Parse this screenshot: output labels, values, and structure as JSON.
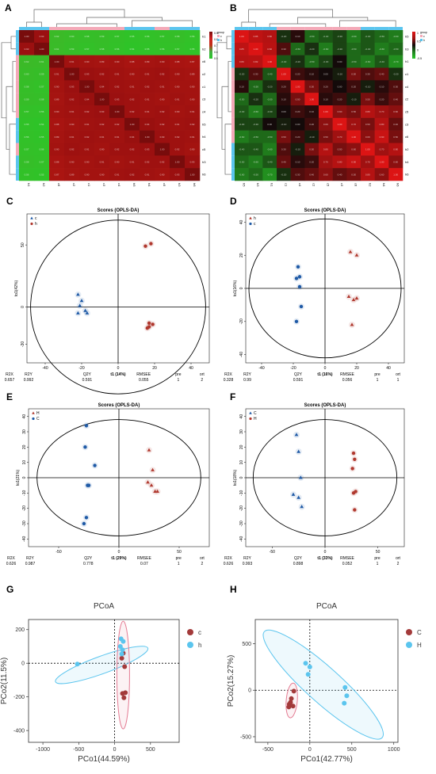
{
  "panel_letters": [
    "A",
    "B",
    "C",
    "D",
    "E",
    "F",
    "G",
    "H"
  ],
  "heatmaps": {
    "A": {
      "legend_title": "group",
      "legend_groups": [
        "c",
        "h"
      ],
      "scale_ticks": [
        "0.9",
        "0.8",
        "0.7",
        "0.6",
        "0.5"
      ],
      "row_labels": [
        "h1",
        "h2",
        "c6",
        "c2",
        "c1",
        "c3",
        "c4",
        "h5",
        "h4",
        "c5",
        "h3",
        "h6"
      ],
      "col_labels": [
        "h1",
        "h2",
        "c6",
        "c2",
        "c1",
        "c3",
        "c4",
        "h5",
        "h4",
        "c5",
        "h3",
        "h6"
      ],
      "values": [
        [
          1.0,
          0.93,
          0.62,
          0.6,
          0.58,
          0.59,
          0.57,
          0.55,
          0.56,
          0.57,
          0.58,
          0.56
        ],
        [
          0.93,
          1.0,
          0.61,
          0.59,
          0.57,
          0.58,
          0.56,
          0.54,
          0.55,
          0.56,
          0.57,
          0.55
        ],
        [
          0.62,
          0.61,
          1.0,
          0.91,
          0.9,
          0.89,
          0.9,
          0.88,
          0.89,
          0.9,
          0.88,
          0.87
        ],
        [
          0.6,
          0.59,
          0.91,
          1.0,
          0.93,
          0.92,
          0.91,
          0.9,
          0.91,
          0.92,
          0.9,
          0.89
        ],
        [
          0.58,
          0.57,
          0.9,
          0.93,
          1.0,
          0.94,
          0.92,
          0.91,
          0.92,
          0.91,
          0.9,
          0.9
        ],
        [
          0.59,
          0.58,
          0.89,
          0.92,
          0.94,
          1.0,
          0.93,
          0.92,
          0.91,
          0.9,
          0.91,
          0.9
        ],
        [
          0.57,
          0.56,
          0.9,
          0.91,
          0.92,
          0.93,
          1.0,
          0.92,
          0.91,
          0.92,
          0.9,
          0.91
        ],
        [
          0.55,
          0.54,
          0.88,
          0.9,
          0.91,
          0.92,
          0.92,
          1.0,
          0.94,
          0.92,
          0.91,
          0.92
        ],
        [
          0.56,
          0.55,
          0.89,
          0.91,
          0.92,
          0.91,
          0.91,
          0.94,
          1.0,
          0.93,
          0.92,
          0.91
        ],
        [
          0.57,
          0.56,
          0.9,
          0.92,
          0.91,
          0.9,
          0.92,
          0.92,
          0.93,
          1.0,
          0.92,
          0.9
        ],
        [
          0.58,
          0.57,
          0.88,
          0.9,
          0.9,
          0.91,
          0.9,
          0.91,
          0.92,
          0.92,
          1.0,
          0.93
        ],
        [
          0.56,
          0.55,
          0.87,
          0.89,
          0.9,
          0.9,
          0.91,
          0.92,
          0.91,
          0.9,
          0.93,
          1.0
        ]
      ]
    },
    "B": {
      "legend_title": "group",
      "legend_groups": [
        "c",
        "h"
      ],
      "scale_ticks": [
        "1",
        "0.5",
        "0",
        "-0.5"
      ],
      "row_labels": [
        "h5",
        "h3",
        "h1",
        "c1",
        "c4",
        "c2",
        "c5",
        "c3",
        "c6",
        "h2",
        "h4",
        "h6"
      ],
      "col_labels": [
        "h5",
        "h3",
        "h1",
        "c1",
        "c4",
        "c2",
        "c5",
        "c3",
        "c6",
        "h2",
        "h4",
        "h6"
      ],
      "values": [
        [
          1.0,
          0.85,
          0.8,
          -0.2,
          0.1,
          -0.5,
          -0.4,
          -0.3,
          -0.6,
          -0.4,
          -0.5,
          -0.6
        ],
        [
          0.85,
          1.0,
          0.82,
          0.3,
          -0.5,
          -0.2,
          -0.6,
          -0.3,
          -0.5,
          -0.4,
          -0.6,
          -0.5
        ],
        [
          0.8,
          0.82,
          1.0,
          -0.4,
          -0.2,
          -0.5,
          -0.3,
          0.0,
          -0.5,
          -0.6,
          -0.4,
          -0.7
        ],
        [
          -0.2,
          0.3,
          -0.4,
          1.0,
          0.2,
          0.1,
          0.0,
          -0.1,
          0.5,
          0.3,
          0.4,
          -0.2
        ],
        [
          0.1,
          -0.5,
          -0.2,
          0.2,
          1.0,
          0.5,
          0.2,
          0.0,
          0.2,
          -0.1,
          0.1,
          0.3
        ],
        [
          -0.5,
          -0.2,
          -0.5,
          0.1,
          0.5,
          1.0,
          0.1,
          0.2,
          -0.1,
          0.5,
          0.2,
          0.4
        ],
        [
          -0.4,
          -0.6,
          -0.3,
          0.0,
          0.2,
          0.1,
          1.0,
          0.6,
          0.5,
          0.8,
          0.7,
          0.6
        ],
        [
          -0.3,
          -0.3,
          0.0,
          -0.1,
          0.0,
          0.2,
          0.6,
          1.0,
          0.7,
          0.5,
          0.8,
          0.4
        ],
        [
          -0.6,
          -0.5,
          -0.5,
          0.5,
          0.2,
          -0.1,
          0.5,
          0.7,
          1.0,
          0.6,
          0.9,
          0.5
        ],
        [
          -0.4,
          -0.4,
          -0.6,
          0.3,
          -0.1,
          0.5,
          0.8,
          0.5,
          0.6,
          1.0,
          0.7,
          0.8
        ],
        [
          -0.5,
          -0.6,
          -0.4,
          0.4,
          0.1,
          0.2,
          0.7,
          0.8,
          0.9,
          0.7,
          1.0,
          0.6
        ],
        [
          -0.6,
          -0.5,
          -0.7,
          -0.2,
          0.3,
          0.4,
          0.6,
          0.4,
          0.5,
          0.8,
          0.6,
          1.0
        ]
      ]
    }
  },
  "opls": {
    "C": {
      "title": "Scores (OPLS-DA)",
      "xlabel": "t1 (14%)",
      "ylabel": "to1(42%)",
      "xlim": [
        -50,
        50
      ],
      "ylim": [
        -45,
        75
      ],
      "xticks": [
        -40,
        -20,
        0,
        20,
        40
      ],
      "yticks": [
        -30,
        0,
        50
      ],
      "ellipse_rx": 48,
      "ellipse_ry": 70,
      "legend": [
        {
          "label": "c",
          "color": "#1f5aa6",
          "marker": "triangle"
        },
        {
          "label": "h",
          "color": "#b0382e",
          "marker": "circle"
        }
      ],
      "stats": {
        "headers": [
          "R2X",
          "R2Y",
          "Q2Y",
          "RMSEE",
          "pre",
          "ort"
        ],
        "values": [
          "0.657",
          "0.992",
          "0.591",
          "0.055",
          "1",
          "2"
        ]
      }
    },
    "D": {
      "title": "Scores (OPLS-DA)",
      "xlabel": "t1 (16%)",
      "ylabel": "to1(16%)",
      "xlim": [
        -50,
        50
      ],
      "ylim": [
        -45,
        45
      ],
      "xticks": [
        -40,
        -20,
        0,
        20,
        40
      ],
      "yticks": [
        -40,
        -20,
        0,
        20,
        40
      ],
      "ellipse_rx": 48,
      "ellipse_ry": 42,
      "legend": [
        {
          "label": "h",
          "color": "#b0382e",
          "marker": "triangle"
        },
        {
          "label": "c",
          "color": "#1f5aa6",
          "marker": "circle"
        }
      ],
      "stats": {
        "headers": [
          "R2X",
          "R2Y",
          "Q2Y",
          "RMSEE",
          "pre",
          "ort"
        ],
        "values": [
          "0.328",
          "0.99",
          "0.591",
          "0.056",
          "1",
          "1"
        ]
      }
    },
    "E": {
      "title": "Scores (OPLS-DA)",
      "xlabel": "t1 (29%)",
      "ylabel": "to1(21%)",
      "xlim": [
        -75,
        75
      ],
      "ylim": [
        -45,
        45
      ],
      "xticks": [
        -50,
        0,
        50
      ],
      "yticks": [
        -40,
        -30,
        -20,
        -10,
        0,
        10,
        20,
        30,
        40
      ],
      "ellipse_rx": 68,
      "ellipse_ry": 38,
      "legend": [
        {
          "label": "H",
          "color": "#b0382e",
          "marker": "triangle"
        },
        {
          "label": "C",
          "color": "#1f5aa6",
          "marker": "circle"
        }
      ],
      "stats": {
        "headers": [
          "R2X",
          "R2Y",
          "Q2Y",
          "RMSEE",
          "pre",
          "ort"
        ],
        "values": [
          "0.626",
          "0.987",
          "0.778",
          "0.07",
          "1",
          "2"
        ]
      }
    },
    "F": {
      "title": "Scores (OPLS-DA)",
      "xlabel": "t1 (33%)",
      "ylabel": "to1(18%)",
      "xlim": [
        -75,
        75
      ],
      "ylim": [
        -45,
        45
      ],
      "xticks": [
        -50,
        0,
        50
      ],
      "yticks": [
        -40,
        -30,
        -20,
        -10,
        0,
        10,
        20,
        30,
        40
      ],
      "ellipse_rx": 68,
      "ellipse_ry": 38,
      "legend": [
        {
          "label": "C",
          "color": "#1f5aa6",
          "marker": "triangle"
        },
        {
          "label": "H",
          "color": "#b0382e",
          "marker": "circle"
        }
      ],
      "stats": {
        "headers": [
          "R2X",
          "R2Y",
          "Q2Y",
          "RMSEE",
          "pre",
          "ort"
        ],
        "values": [
          "0.626",
          "0.993",
          "0.898",
          "0.052",
          "1",
          "2"
        ]
      }
    }
  },
  "pcoa": {
    "G": {
      "title": "PCoA",
      "xlabel": "PCo1(44.59%)",
      "ylabel": "PCo2(11.5%)",
      "xlim": [
        -1200,
        900
      ],
      "ylim": [
        -470,
        260
      ],
      "xticks": [
        -1000,
        -500,
        0,
        500
      ],
      "yticks": [
        -400,
        -200,
        0,
        200
      ],
      "legend": [
        {
          "label": "c",
          "color": "#a33a3a"
        },
        {
          "label": "h",
          "color": "#5bc5ee"
        }
      ]
    },
    "H": {
      "title": "PCoA",
      "xlabel": "PCo1(42.77%)",
      "ylabel": "PCo2(15.27%)",
      "xlim": [
        -650,
        1050
      ],
      "ylim": [
        -560,
        760
      ],
      "xticks": [
        -500,
        0,
        500,
        1000
      ],
      "yticks": [
        -500,
        0,
        500
      ],
      "legend": [
        {
          "label": "C",
          "color": "#a33a3a"
        },
        {
          "label": "H",
          "color": "#5bc5ee"
        }
      ]
    }
  },
  "chart_data": [
    {
      "panel": "C",
      "type": "scatter",
      "title": "Scores (OPLS-DA)",
      "xlabel": "t1 (14%)",
      "ylabel": "to1(42%)",
      "xlim": [
        -50,
        50
      ],
      "ylim": [
        -45,
        75
      ],
      "series": [
        {
          "name": "c",
          "color": "#1f5aa6",
          "marker": "triangle",
          "points": [
            [
              -22,
              10
            ],
            [
              -20,
              5
            ],
            [
              -21,
              1
            ],
            [
              -18,
              -3
            ],
            [
              -22,
              -5
            ],
            [
              -17,
              -5
            ]
          ]
        },
        {
          "name": "h",
          "color": "#b0382e",
          "marker": "circle",
          "points": [
            [
              15,
              49
            ],
            [
              18,
              51
            ],
            [
              17,
              -13
            ],
            [
              19,
              -14
            ],
            [
              16,
              -17
            ],
            [
              17,
              -16
            ]
          ]
        }
      ]
    },
    {
      "panel": "D",
      "type": "scatter",
      "title": "Scores (OPLS-DA)",
      "xlabel": "t1 (16%)",
      "ylabel": "to1(16%)",
      "xlim": [
        -50,
        50
      ],
      "ylim": [
        -45,
        45
      ],
      "series": [
        {
          "name": "h",
          "color": "#b0382e",
          "marker": "triangle",
          "points": [
            [
              16,
              22
            ],
            [
              20,
              20
            ],
            [
              15,
              -5
            ],
            [
              18,
              -7
            ],
            [
              20,
              -6
            ],
            [
              17,
              -22
            ]
          ]
        },
        {
          "name": "c",
          "color": "#1f5aa6",
          "marker": "circle",
          "points": [
            [
              -17,
              13
            ],
            [
              -16,
              7
            ],
            [
              -18,
              6
            ],
            [
              -16,
              1
            ],
            [
              -15,
              -11
            ],
            [
              -18,
              -20
            ]
          ]
        }
      ]
    },
    {
      "panel": "E",
      "type": "scatter",
      "title": "Scores (OPLS-DA)",
      "xlabel": "t1 (29%)",
      "ylabel": "to1(21%)",
      "xlim": [
        -75,
        75
      ],
      "ylim": [
        -45,
        45
      ],
      "series": [
        {
          "name": "H",
          "color": "#b0382e",
          "marker": "triangle",
          "points": [
            [
              25,
              18
            ],
            [
              28,
              5
            ],
            [
              24,
              -3
            ],
            [
              27,
              -5
            ],
            [
              30,
              -9
            ],
            [
              32,
              -9
            ]
          ]
        },
        {
          "name": "C",
          "color": "#1f5aa6",
          "marker": "circle",
          "points": [
            [
              -27,
              34
            ],
            [
              -28,
              20
            ],
            [
              -20,
              8
            ],
            [
              -26,
              -5
            ],
            [
              -25,
              -5
            ],
            [
              -27,
              -26
            ],
            [
              -29,
              -30
            ]
          ]
        }
      ]
    },
    {
      "panel": "F",
      "type": "scatter",
      "title": "Scores (OPLS-DA)",
      "xlabel": "t1 (33%)",
      "ylabel": "to1(18%)",
      "xlim": [
        -75,
        75
      ],
      "ylim": [
        -45,
        45
      ],
      "series": [
        {
          "name": "C",
          "color": "#1f5aa6",
          "marker": "triangle",
          "points": [
            [
              -27,
              28
            ],
            [
              -25,
              17
            ],
            [
              -23,
              0
            ],
            [
              -30,
              -11
            ],
            [
              -25,
              -13
            ],
            [
              -22,
              -19
            ]
          ]
        },
        {
          "name": "H",
          "color": "#b0382e",
          "marker": "circle",
          "points": [
            [
              27,
              16
            ],
            [
              28,
              12
            ],
            [
              26,
              6
            ],
            [
              27,
              -10
            ],
            [
              29,
              -9
            ],
            [
              28,
              -21
            ]
          ]
        }
      ]
    },
    {
      "panel": "G",
      "type": "scatter",
      "title": "PCoA",
      "xlabel": "PCo1(44.59%)",
      "ylabel": "PCo2(11.5%)",
      "xlim": [
        -1200,
        900
      ],
      "ylim": [
        -470,
        260
      ],
      "series": [
        {
          "name": "c",
          "color": "#a33a3a",
          "points": [
            [
              120,
              60
            ],
            [
              140,
              -20
            ],
            [
              110,
              -180
            ],
            [
              150,
              -175
            ],
            [
              130,
              -205
            ],
            [
              100,
              30
            ]
          ]
        },
        {
          "name": "h",
          "color": "#5bc5ee",
          "points": [
            [
              -520,
              -5
            ],
            [
              90,
              145
            ],
            [
              120,
              130
            ],
            [
              110,
              80
            ],
            [
              100,
              55
            ],
            [
              80,
              100
            ]
          ]
        }
      ]
    },
    {
      "panel": "H",
      "type": "scatter",
      "title": "PCoA",
      "xlabel": "PCo1(42.77%)",
      "ylabel": "PCo2(15.27%)",
      "xlim": [
        -650,
        1050
      ],
      "ylim": [
        -560,
        760
      ],
      "series": [
        {
          "name": "C",
          "color": "#a33a3a",
          "points": [
            [
              -190,
              -10
            ],
            [
              -220,
              -90
            ],
            [
              -245,
              -150
            ],
            [
              -250,
              -180
            ],
            [
              -200,
              -170
            ],
            [
              -230,
              -130
            ]
          ]
        },
        {
          "name": "H",
          "color": "#5bc5ee",
          "points": [
            [
              -50,
              290
            ],
            [
              0,
              250
            ],
            [
              -20,
              170
            ],
            [
              420,
              30
            ],
            [
              440,
              -60
            ],
            [
              410,
              -140
            ]
          ]
        }
      ]
    }
  ]
}
